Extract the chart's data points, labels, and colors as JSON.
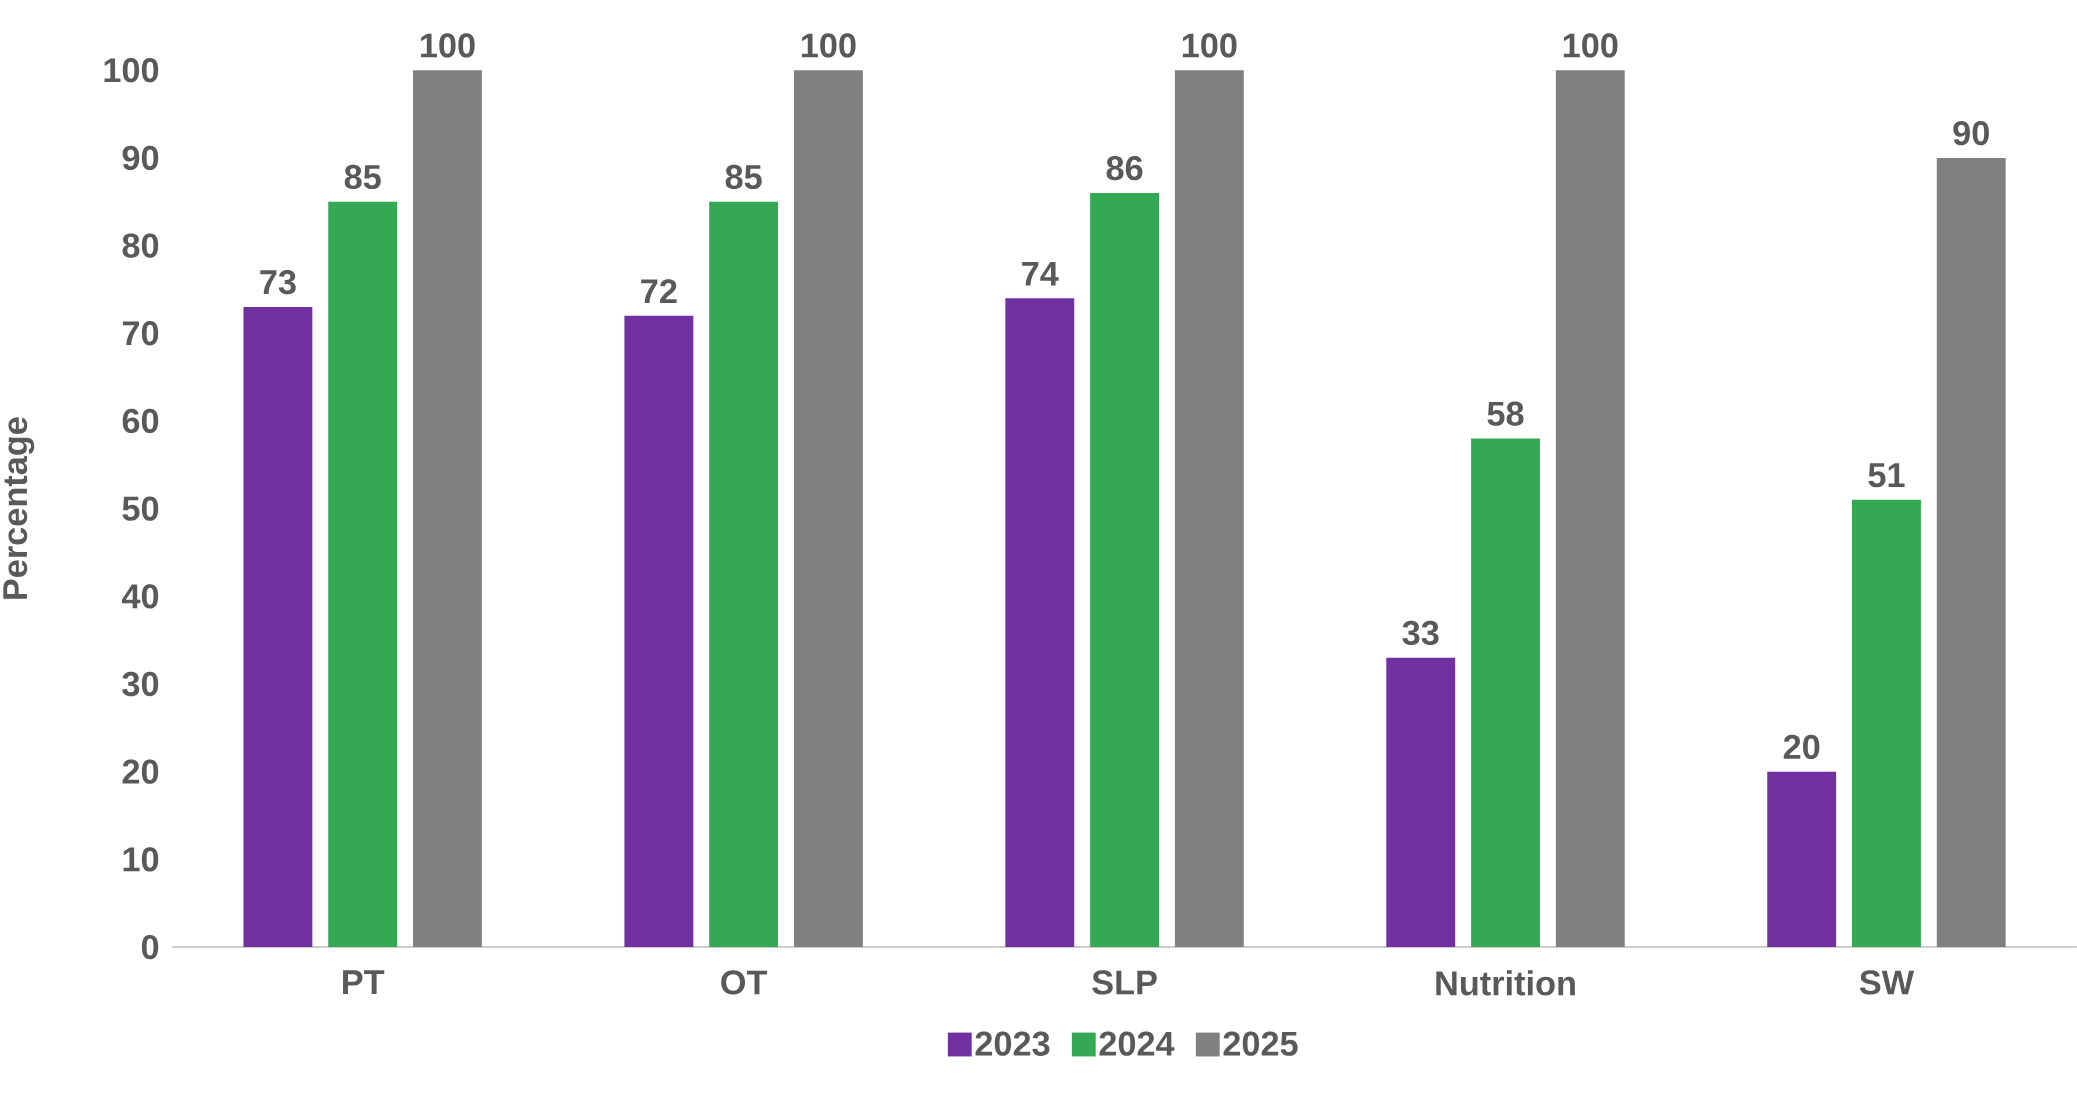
{
  "chart_data": {
    "type": "bar",
    "ylabel": "Percentage",
    "categories": [
      "PT",
      "OT",
      "SLP",
      "Nutrition",
      "SW"
    ],
    "series": [
      {
        "name": "2023",
        "color": "#7030a0",
        "values": [
          73,
          72,
          74,
          33,
          20
        ]
      },
      {
        "name": "2024",
        "color": "#34a853",
        "values": [
          85,
          85,
          86,
          58,
          51
        ]
      },
      {
        "name": "2025",
        "color": "#808080",
        "values": [
          100,
          100,
          100,
          100,
          90
        ]
      }
    ],
    "ylim": [
      0,
      100
    ],
    "yticks": [
      0,
      10,
      20,
      30,
      40,
      50,
      60,
      70,
      80,
      90,
      100
    ],
    "data_labels": true,
    "legend": "bottom"
  }
}
